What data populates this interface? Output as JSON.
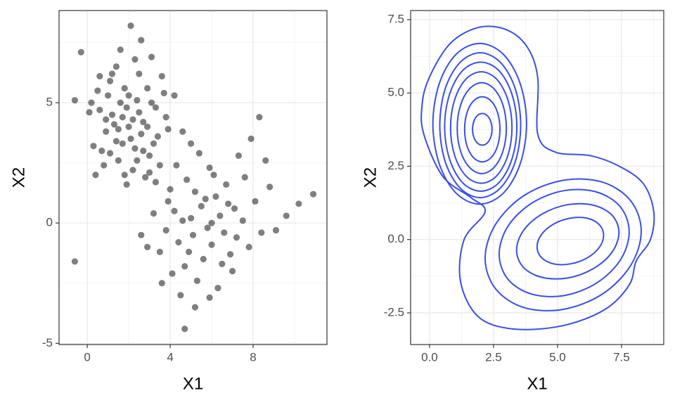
{
  "chart_data": [
    {
      "type": "scatter",
      "x_label": "X1",
      "y_label": "X2",
      "color": "#000000",
      "grid": true,
      "minor_grid": true,
      "xlim": [
        -1.36,
        11.56
      ],
      "ylim": [
        -5.05,
        8.83
      ],
      "xticks": [
        0,
        4,
        8
      ],
      "yticks": [
        -5,
        0,
        5
      ],
      "x": [
        1.2,
        2.3,
        1.8,
        2.7,
        0.9,
        3.1,
        1.5,
        2.0,
        2.5,
        1.1,
        3.4,
        0.6,
        2.2,
        1.7,
        2.9,
        0.3,
        1.4,
        3.8,
        2.6,
        1.9,
        0.8,
        3.0,
        1.3,
        2.4,
        1.6,
        3.6,
        0.1,
        2.8,
        1.0,
        2.1,
        4.2,
        0.5,
        1.8,
        3.3,
        2.3,
        0.7,
        2.0,
        1.5,
        2.7,
        3.9,
        1.2,
        0.4,
        2.5,
        1.9,
        3.5,
        0.9,
        2.2,
        1.6,
        3.1,
        4.6,
        2.9,
        1.4,
        0.2,
        2.6,
        1.1,
        3.7,
        1.7,
        2.4,
        0.6,
        3.2,
        5.0,
        6.2,
        4.4,
        5.6,
        7.1,
        3.9,
        6.6,
        4.8,
        5.9,
        7.6,
        3.5,
        5.3,
        6.9,
        4.1,
        8.1,
        5.5,
        4.6,
        6.0,
        7.3,
        3.8,
        5.2,
        6.4,
        4.3,
        8.4,
        5.8,
        7.8,
        3.2,
        6.7,
        4.9,
        5.4,
        7.0,
        4.0,
        6.3,
        8.8,
        3.6,
        5.1,
        6.1,
        7.5,
        4.5,
        5.7,
        8.6,
        3.3,
        6.8,
        4.7,
        5.0,
        7.2,
        2.9,
        6.5,
        4.2,
        9.1,
        5.9,
        7.9,
        3.0,
        6.0,
        2.6,
        -0.6,
        -0.3,
        2.1,
        4.7,
        10.9,
        10.2,
        -0.6,
        5.2,
        9.6,
        8.3
      ],
      "y": [
        4.5,
        3.1,
        5.6,
        4.2,
        3.8,
        5.0,
        2.6,
        4.0,
        6.2,
        5.9,
        3.6,
        4.7,
        2.2,
        3.3,
        5.6,
        3.2,
        6.5,
        4.4,
        3.7,
        4.8,
        2.4,
        2.8,
        4.1,
        5.1,
        7.2,
        6.1,
        4.6,
        1.9,
        5.3,
        3.5,
        5.3,
        5.5,
        2.0,
        4.8,
        6.8,
        3.0,
        5.3,
        3.9,
        3.0,
        3.9,
        6.2,
        2.0,
        4.6,
        1.6,
        2.4,
        4.3,
        4.3,
        5.0,
        6.9,
        3.8,
        4.0,
        3.4,
        5.0,
        7.6,
        2.9,
        5.4,
        4.4,
        2.6,
        6.1,
        3.3,
        0.2,
        1.1,
        -0.8,
        -1.5,
        0.6,
        0.9,
        -0.4,
        1.8,
        2.3,
        1.9,
        -1.2,
        -2.4,
        -1.3,
        -2.1,
        0.9,
        0.7,
        0.1,
        -0.9,
        2.8,
        -0.3,
        1.3,
        0.3,
        2.4,
        -0.4,
        -0.2,
        -1.0,
        0.4,
        1.6,
        -1.2,
        2.9,
        -2.0,
        1.4,
        -2.7,
        1.5,
        -2.5,
        -0.5,
        2.0,
        0.1,
        -3.0,
        1.0,
        2.6,
        1.7,
        0.8,
        -1.8,
        3.3,
        -0.6,
        -1.0,
        -1.7,
        0.5,
        -0.3,
        -3.1,
        3.5,
        2.1,
        0.0,
        -0.5,
        5.1,
        7.1,
        8.2,
        -4.4,
        1.2,
        0.8,
        -1.6,
        -3.5,
        0.3,
        4.4
      ]
    },
    {
      "type": "contour",
      "x_label": "X1",
      "y_label": "X2",
      "color": "#3a4ee8",
      "grid": true,
      "minor_grid": true,
      "xlim": [
        -0.74,
        9.15
      ],
      "ylim": [
        -3.58,
        7.81
      ],
      "xticks": [
        {
          "value": 0,
          "label": "0.0"
        },
        2.5,
        {
          "value": 5,
          "label": "5.0"
        },
        7.5
      ],
      "yticks": [
        -2.5,
        {
          "value": 0,
          "label": "0.0"
        },
        2.5,
        {
          "value": 5,
          "label": "5.0"
        },
        7.5
      ],
      "contours": [
        {
          "x": [
            2.44,
            2.39,
            2.25,
            2.06,
            1.87,
            1.73,
            1.68,
            1.73,
            1.87,
            2.06,
            2.25,
            2.39
          ],
          "y": [
            3.76,
            4.03,
            4.23,
            4.3,
            4.23,
            4.03,
            3.76,
            3.49,
            3.29,
            3.22,
            3.29,
            3.49
          ]
        },
        {
          "x": [
            2.75,
            2.66,
            2.41,
            2.06,
            1.71,
            1.46,
            1.37,
            1.46,
            1.71,
            2.06,
            2.41,
            2.66
          ],
          "y": [
            3.76,
            4.32,
            4.72,
            4.87,
            4.72,
            4.32,
            3.76,
            3.2,
            2.8,
            2.65,
            2.8,
            3.2
          ]
        },
        {
          "x": [
            3.0,
            2.87,
            2.52,
            2.04,
            1.56,
            1.21,
            1.08,
            1.21,
            1.56,
            2.04,
            2.52,
            2.87
          ],
          "y": [
            3.8,
            4.58,
            5.14,
            5.35,
            5.14,
            4.58,
            3.8,
            3.02,
            2.46,
            2.25,
            2.46,
            3.02
          ]
        },
        {
          "x": [
            3.22,
            3.06,
            2.62,
            2.02,
            1.42,
            0.98,
            0.82,
            0.98,
            1.42,
            2.02,
            2.62,
            3.06
          ],
          "y": [
            3.82,
            4.77,
            5.47,
            5.72,
            5.47,
            4.77,
            3.82,
            2.87,
            2.17,
            1.92,
            2.17,
            2.87
          ]
        },
        {
          "x": [
            3.41,
            3.22,
            2.71,
            2.0,
            1.29,
            0.78,
            0.59,
            0.78,
            1.29,
            2.0,
            2.71,
            3.22
          ],
          "y": [
            3.85,
            4.95,
            5.76,
            6.05,
            5.76,
            4.95,
            3.85,
            2.75,
            1.94,
            1.65,
            1.94,
            2.75
          ]
        },
        {
          "x": [
            3.56,
            3.35,
            2.77,
            1.98,
            1.19,
            0.61,
            0.4,
            0.61,
            1.19,
            1.98,
            2.77,
            3.35
          ],
          "y": [
            3.9,
            5.14,
            6.04,
            6.37,
            6.04,
            5.14,
            3.9,
            2.66,
            1.76,
            1.43,
            1.76,
            2.66
          ]
        },
        {
          "x": [
            3.79,
            3.54,
            2.88,
            1.96,
            1.04,
            0.38,
            0.13,
            0.38,
            1.04,
            1.96,
            2.88,
            3.54
          ],
          "y": [
            3.95,
            5.32,
            6.32,
            6.69,
            6.32,
            5.32,
            3.95,
            2.58,
            1.58,
            1.21,
            1.58,
            2.58
          ]
        },
        {
          "x": [
            6.8,
            6.63,
            6.15,
            5.5,
            4.85,
            4.37,
            4.2,
            4.37,
            4.85,
            5.5,
            6.15,
            6.63
          ],
          "y": [
            0.15,
            0.51,
            0.73,
            0.73,
            0.53,
            0.17,
            -0.25,
            -0.61,
            -0.83,
            -0.83,
            -0.63,
            -0.27
          ]
        },
        {
          "x": [
            7.4,
            7.13,
            6.4,
            5.4,
            4.4,
            3.67,
            3.4,
            3.67,
            4.4,
            5.4,
            6.4,
            7.13
          ],
          "y": [
            0.24,
            0.83,
            1.17,
            1.19,
            0.87,
            0.31,
            -0.36,
            -0.95,
            -1.29,
            -1.31,
            -0.99,
            -0.43
          ]
        },
        {
          "x": [
            7.8,
            7.46,
            6.53,
            5.26,
            3.99,
            3.06,
            2.72,
            3.06,
            3.99,
            5.26,
            6.53,
            7.46
          ],
          "y": [
            0.26,
            1.11,
            1.62,
            1.67,
            1.24,
            0.45,
            -0.5,
            -1.35,
            -1.86,
            -1.91,
            -1.48,
            -0.69
          ]
        },
        {
          "x": [
            8.27,
            7.86,
            6.75,
            5.22,
            3.69,
            2.58,
            2.17,
            2.58,
            3.69,
            5.22,
            6.75,
            7.86
          ],
          "y": [
            0.28,
            1.32,
            1.96,
            2.02,
            1.5,
            0.52,
            -0.64,
            -1.68,
            -2.32,
            -2.38,
            -1.86,
            -0.88
          ]
        },
        {
          "x": [
            1.9,
            2.99,
            3.82,
            4.23,
            4.23,
            4.92,
            6.29,
            7.39,
            8.35,
            8.76,
            8.63,
            8.08,
            7.8,
            6.84,
            5.19,
            3.27,
            1.9,
            1.21,
            1.35,
            2.17,
            1.62,
            0.52,
            -0.22,
            -0.3,
            -0.03,
            0.8
          ],
          "y": [
            7.23,
            7.16,
            6.56,
            5.49,
            3.58,
            2.98,
            2.86,
            2.51,
            1.91,
            0.95,
            0,
            -0.72,
            -1.55,
            -2.39,
            -2.94,
            -3.05,
            -2.63,
            -1.43,
            0,
            0.95,
            1.43,
            2.15,
            3.58,
            4.53,
            5.49,
            6.68
          ]
        }
      ]
    }
  ]
}
